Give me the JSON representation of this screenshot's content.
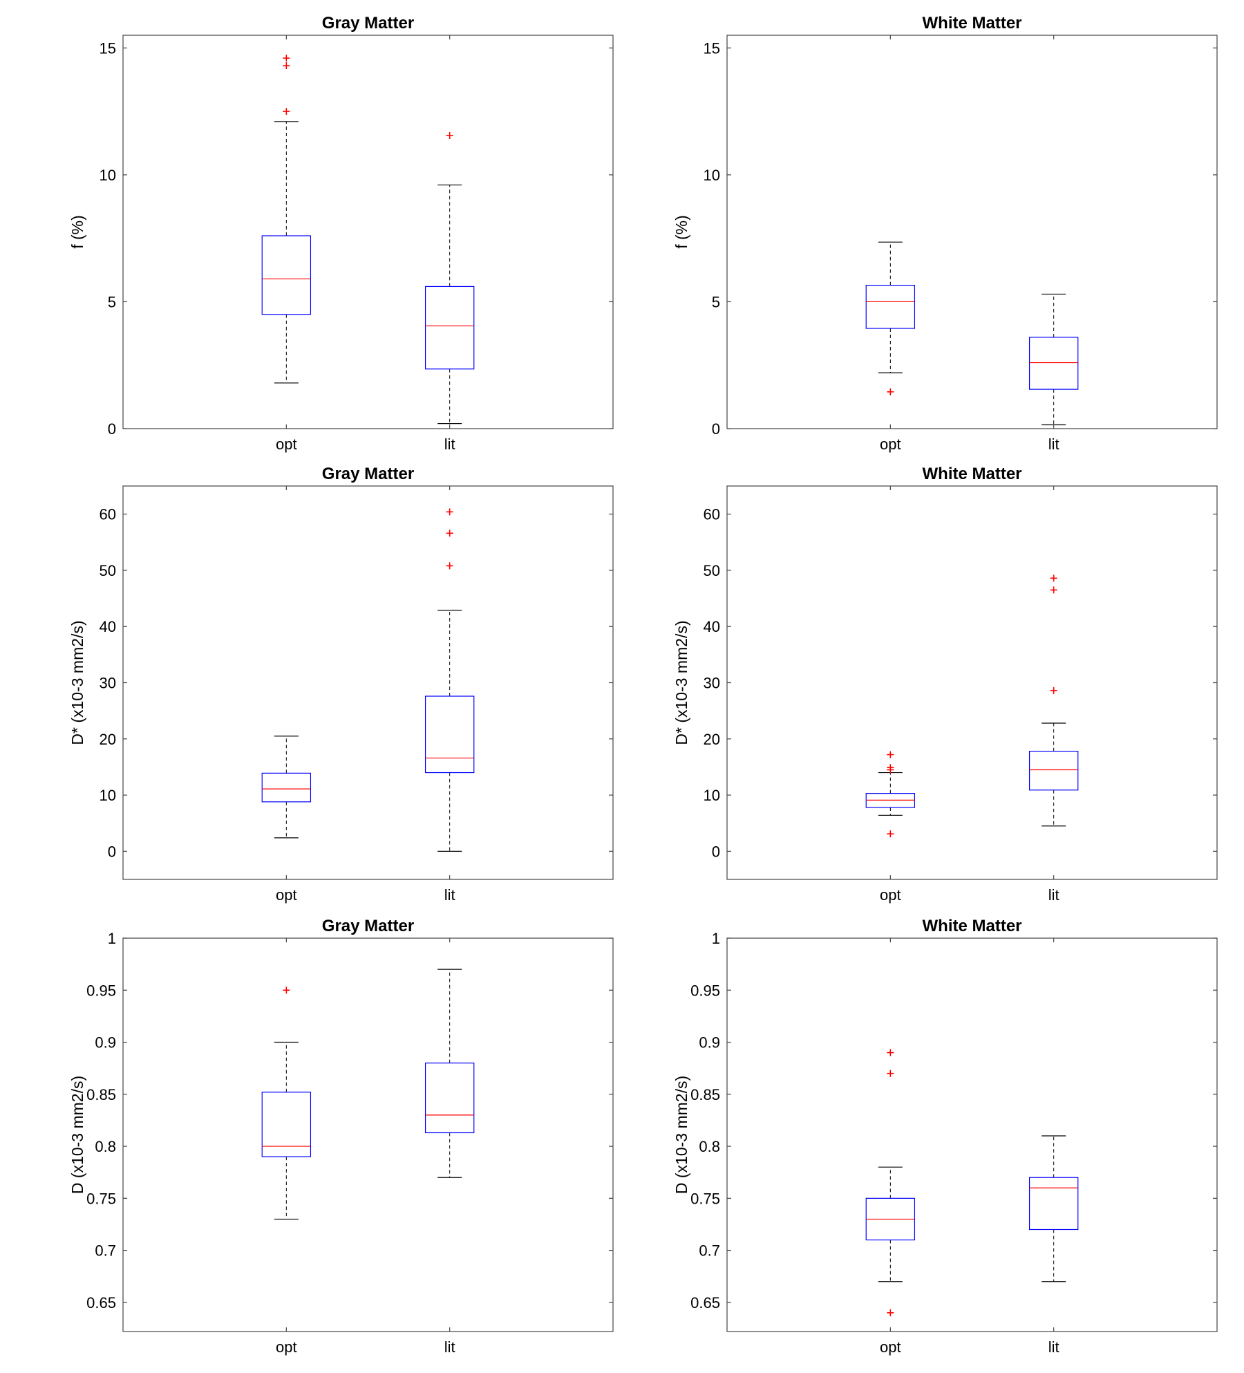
{
  "chart_data": [
    {
      "type": "box",
      "title": "Gray Matter",
      "ylabel": "f (%)",
      "xlabel": "",
      "ylim": [
        0,
        15.5
      ],
      "yticks": [
        0,
        5,
        10,
        15
      ],
      "ytick_labels": [
        "0",
        "5",
        "10",
        "15"
      ],
      "categories": [
        "opt",
        "lit"
      ],
      "boxes": [
        {
          "whisker_low": 1.8,
          "q1": 4.5,
          "median": 5.9,
          "q3": 7.6,
          "whisker_high": 12.1,
          "outliers": [
            12.5,
            14.3,
            14.6
          ]
        },
        {
          "whisker_low": 0.2,
          "q1": 2.35,
          "median": 4.05,
          "q3": 5.6,
          "whisker_high": 9.6,
          "outliers": [
            11.55
          ]
        }
      ]
    },
    {
      "type": "box",
      "title": "White Matter",
      "ylabel": "f (%)",
      "xlabel": "",
      "ylim": [
        0,
        15.5
      ],
      "yticks": [
        0,
        5,
        10,
        15
      ],
      "ytick_labels": [
        "0",
        "5",
        "10",
        "15"
      ],
      "categories": [
        "opt",
        "lit"
      ],
      "boxes": [
        {
          "whisker_low": 2.2,
          "q1": 3.95,
          "median": 5.0,
          "q3": 5.65,
          "whisker_high": 7.35,
          "outliers": [
            1.45
          ]
        },
        {
          "whisker_low": 0.15,
          "q1": 1.55,
          "median": 2.6,
          "q3": 3.6,
          "whisker_high": 5.3,
          "outliers": []
        }
      ]
    },
    {
      "type": "box",
      "title": "Gray Matter",
      "ylabel": "D* (x10-3 mm2/s)",
      "xlabel": "",
      "ylim": [
        -5,
        65
      ],
      "yticks": [
        0,
        10,
        20,
        30,
        40,
        50,
        60
      ],
      "ytick_labels": [
        "0",
        "10",
        "20",
        "30",
        "40",
        "50",
        "60"
      ],
      "categories": [
        "opt",
        "lit"
      ],
      "boxes": [
        {
          "whisker_low": 2.4,
          "q1": 8.8,
          "median": 11.1,
          "q3": 13.9,
          "whisker_high": 20.5,
          "outliers": []
        },
        {
          "whisker_low": 0.0,
          "q1": 14.0,
          "median": 16.6,
          "q3": 27.6,
          "whisker_high": 42.9,
          "outliers": [
            50.8,
            56.6,
            60.4
          ]
        }
      ]
    },
    {
      "type": "box",
      "title": "White Matter",
      "ylabel": "D* (x10-3 mm2/s)",
      "xlabel": "",
      "ylim": [
        -5,
        65
      ],
      "yticks": [
        0,
        10,
        20,
        30,
        40,
        50,
        60
      ],
      "ytick_labels": [
        "0",
        "10",
        "20",
        "30",
        "40",
        "50",
        "60"
      ],
      "categories": [
        "opt",
        "lit"
      ],
      "boxes": [
        {
          "whisker_low": 6.4,
          "q1": 7.8,
          "median": 9.1,
          "q3": 10.3,
          "whisker_high": 14.0,
          "outliers": [
            3.1,
            14.5,
            14.9,
            17.2
          ]
        },
        {
          "whisker_low": 4.5,
          "q1": 10.9,
          "median": 14.5,
          "q3": 17.8,
          "whisker_high": 22.8,
          "outliers": [
            28.6,
            46.5,
            48.6
          ]
        }
      ]
    },
    {
      "type": "box",
      "title": "Gray Matter",
      "ylabel": "D (x10-3 mm2/s)",
      "xlabel": "",
      "ylim": [
        0.622,
        1.0
      ],
      "yticks": [
        0.65,
        0.7,
        0.75,
        0.8,
        0.85,
        0.9,
        0.95,
        1.0
      ],
      "ytick_labels": [
        "0.65",
        "0.7",
        "0.75",
        "0.8",
        "0.85",
        "0.9",
        "0.95",
        "1"
      ],
      "categories": [
        "opt",
        "lit"
      ],
      "boxes": [
        {
          "whisker_low": 0.73,
          "q1": 0.79,
          "median": 0.8,
          "q3": 0.852,
          "whisker_high": 0.9,
          "outliers": [
            0.95
          ]
        },
        {
          "whisker_low": 0.77,
          "q1": 0.813,
          "median": 0.83,
          "q3": 0.88,
          "whisker_high": 0.97,
          "outliers": []
        }
      ]
    },
    {
      "type": "box",
      "title": "White Matter",
      "ylabel": "D (x10-3 mm2/s)",
      "xlabel": "",
      "ylim": [
        0.622,
        1.0
      ],
      "yticks": [
        0.65,
        0.7,
        0.75,
        0.8,
        0.85,
        0.9,
        0.95,
        1.0
      ],
      "ytick_labels": [
        "0.65",
        "0.7",
        "0.75",
        "0.8",
        "0.85",
        "0.9",
        "0.95",
        "1"
      ],
      "categories": [
        "opt",
        "lit"
      ],
      "boxes": [
        {
          "whisker_low": 0.67,
          "q1": 0.71,
          "median": 0.73,
          "q3": 0.75,
          "whisker_high": 0.78,
          "outliers": [
            0.64,
            0.87,
            0.89
          ]
        },
        {
          "whisker_low": 0.67,
          "q1": 0.72,
          "median": 0.76,
          "q3": 0.77,
          "whisker_high": 0.81,
          "outliers": []
        }
      ]
    }
  ],
  "colors": {
    "box": "#0000ff",
    "median": "#ff0000",
    "outlier": "#ff0000",
    "whisker": "#000000",
    "frame": "#444444"
  }
}
